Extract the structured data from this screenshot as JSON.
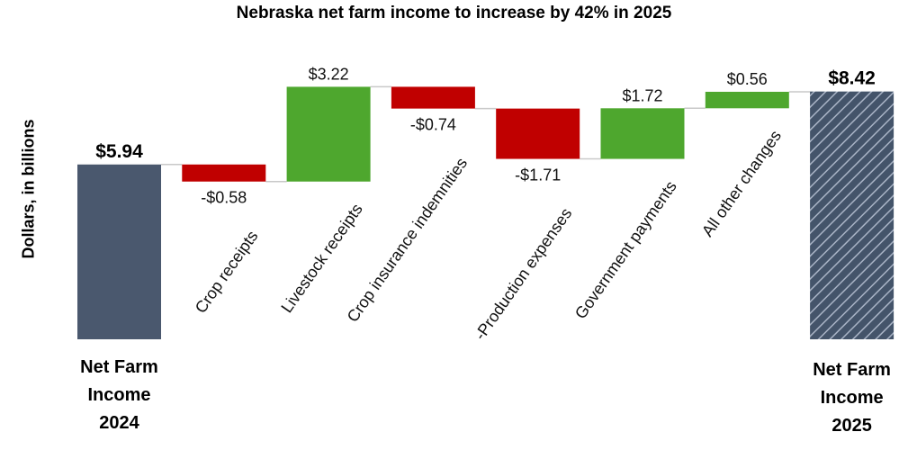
{
  "chart_data": {
    "type": "bar",
    "subtype": "waterfall",
    "title": "Nebraska net farm income to increase by 42% in 2025",
    "ylabel": "Dollars, in billions",
    "ylim": [
      0,
      9.5
    ],
    "grid": false,
    "legend": "none",
    "steps": [
      {
        "kind": "total",
        "label_lines": [
          "Net Farm",
          "Income",
          "2024"
        ],
        "value": 5.94,
        "value_label": "$5.94",
        "color": "#4a586e"
      },
      {
        "kind": "delta",
        "label": "Crop receipts",
        "value": -0.58,
        "value_label": "-$0.58",
        "color": "#c00000"
      },
      {
        "kind": "delta",
        "label": "Livestock receipts",
        "value": 3.22,
        "value_label": "$3.22",
        "color": "#4ea72e"
      },
      {
        "kind": "delta",
        "label": "Crop insurance indemnities",
        "value": -0.74,
        "value_label": "-$0.74",
        "color": "#c00000"
      },
      {
        "kind": "delta",
        "label": "-Production expenses",
        "value": -1.71,
        "value_label": "-$1.71",
        "color": "#c00000"
      },
      {
        "kind": "delta",
        "label": "Government payments",
        "value": 1.72,
        "value_label": "$1.72",
        "color": "#4ea72e"
      },
      {
        "kind": "delta",
        "label": "All other changes",
        "value": 0.56,
        "value_label": "$0.56",
        "color": "#4ea72e"
      },
      {
        "kind": "total",
        "label_lines": [
          "Net Farm",
          "Income",
          "2025"
        ],
        "value": 8.42,
        "value_label": "$8.42",
        "color": "#44546a",
        "pattern": "diagonal-hatch"
      }
    ]
  }
}
